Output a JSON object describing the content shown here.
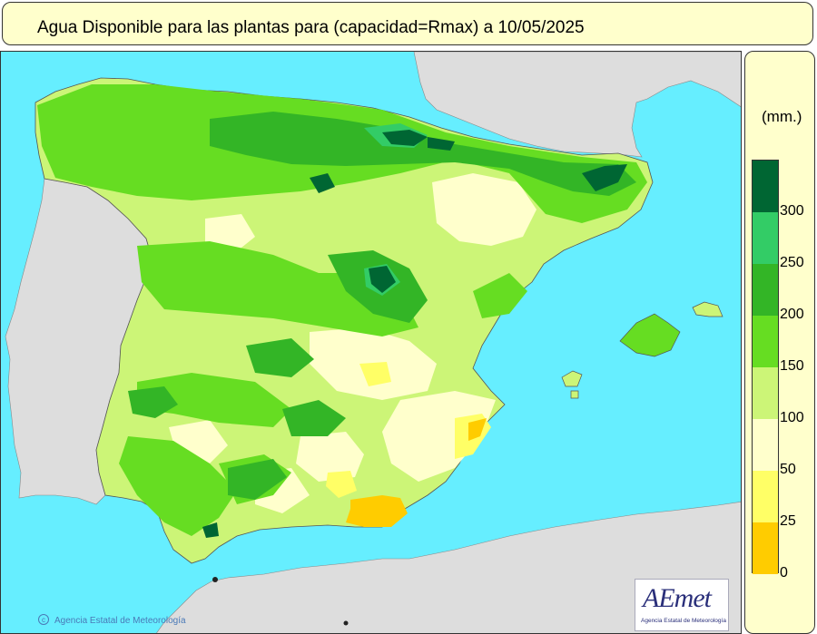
{
  "title": "Agua Disponible para las plantas para (capacidad=Rmax) a 10/05/2025",
  "legend": {
    "unit": "(mm.)",
    "classes": [
      {
        "from": 300,
        "to": 350,
        "color": "#006633"
      },
      {
        "from": 250,
        "to": 300,
        "color": "#33cc66"
      },
      {
        "from": 200,
        "to": 250,
        "color": "#33b526"
      },
      {
        "from": 150,
        "to": 200,
        "color": "#66dd22"
      },
      {
        "from": 100,
        "to": 150,
        "color": "#ccf577"
      },
      {
        "from": 50,
        "to": 100,
        "color": "#ffffcc"
      },
      {
        "from": 25,
        "to": 50,
        "color": "#ffff66"
      },
      {
        "from": 0,
        "to": 25,
        "color": "#ffcc00"
      }
    ],
    "ticks": [
      "300",
      "250",
      "200",
      "150",
      "100",
      "50",
      "25",
      "0"
    ]
  },
  "colors": {
    "sea": "#66eeff",
    "foreign_land": "#dddddd",
    "frame_fill": "#ffffcc"
  },
  "credit": "Agencia Estatal de Meteorología",
  "logo": {
    "word": "AEmet",
    "subtitle": "Agencia Estatal de Meteorología"
  }
}
